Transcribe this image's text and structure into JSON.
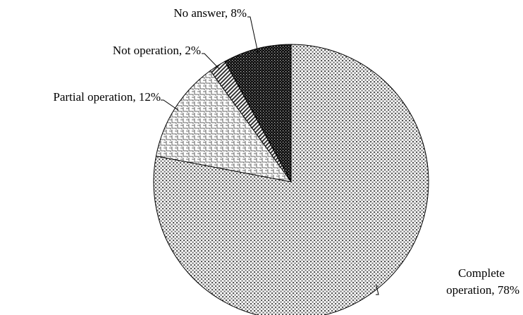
{
  "chart_data": {
    "type": "pie",
    "labels": [
      "Complete operation, 78%",
      "Partial operation, 12%",
      "Not operation, 2%",
      "No answer, 8%"
    ],
    "values": [
      78,
      12,
      2,
      8
    ],
    "start_angle": 90,
    "direction": "clockwise"
  }
}
